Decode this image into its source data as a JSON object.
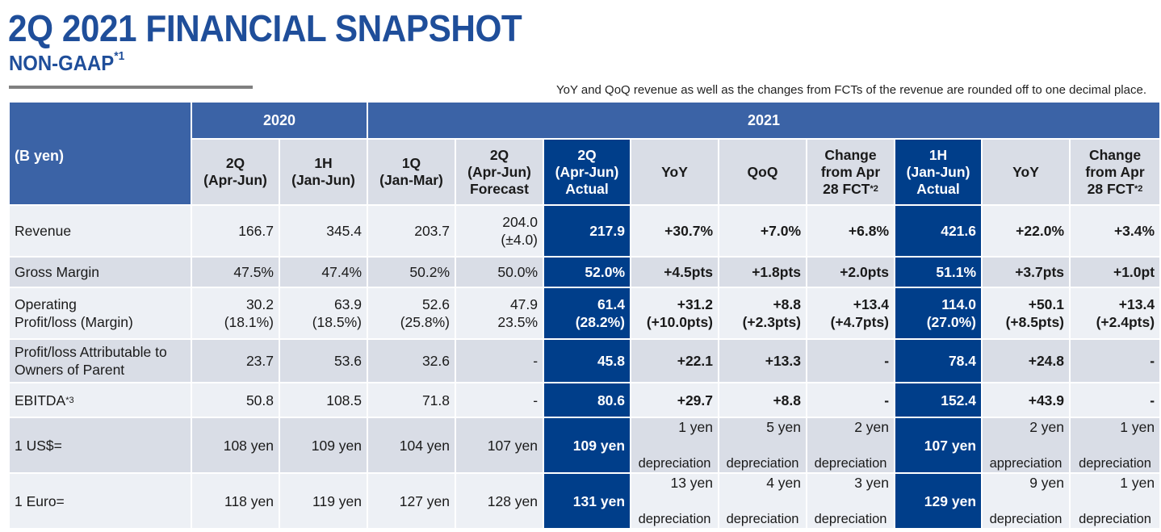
{
  "header": {
    "title": "2Q 2021 FINANCIAL SNAPSHOT",
    "subtitle": "NON-GAAP",
    "subtitle_note_mark": "*1",
    "note": "YoY and QoQ revenue as well as the changes from FCTs of the revenue are rounded off to one decimal place."
  },
  "table": {
    "unit_label": "(B yen)",
    "year_2020": "2020",
    "year_2021": "2021",
    "columns": [
      {
        "line1": "2Q",
        "line2": "(Apr-Jun)",
        "line3": ""
      },
      {
        "line1": "1H",
        "line2": "(Jan-Jun)",
        "line3": ""
      },
      {
        "line1": "1Q",
        "line2": "(Jan-Mar)",
        "line3": ""
      },
      {
        "line1": "2Q",
        "line2": "(Apr-Jun)",
        "line3": "Forecast"
      },
      {
        "line1": "2Q",
        "line2": "(Apr-Jun)",
        "line3": "Actual"
      },
      {
        "line1": "YoY",
        "line2": "",
        "line3": ""
      },
      {
        "line1": "QoQ",
        "line2": "",
        "line3": ""
      },
      {
        "line1": "Change",
        "line2": "from Apr",
        "line3": "28 FCT",
        "mark": "*2"
      },
      {
        "line1": "1H",
        "line2": "(Jan-Jun)",
        "line3": "Actual"
      },
      {
        "line1": "YoY",
        "line2": "",
        "line3": ""
      },
      {
        "line1": "Change",
        "line2": "from Apr",
        "line3": "28 FCT",
        "mark": "*2"
      }
    ],
    "rows": [
      {
        "label1": "Revenue",
        "label2": "",
        "cells": [
          [
            "166.7",
            ""
          ],
          [
            "345.4",
            ""
          ],
          [
            "203.7",
            ""
          ],
          [
            "204.0",
            "(±4.0)"
          ],
          [
            "217.9",
            ""
          ],
          [
            "+30.7%",
            ""
          ],
          [
            "+7.0%",
            ""
          ],
          [
            "+6.8%",
            ""
          ],
          [
            "421.6",
            ""
          ],
          [
            "+22.0%",
            ""
          ],
          [
            "+3.4%",
            ""
          ]
        ]
      },
      {
        "label1": "Gross Margin",
        "label2": "",
        "cells": [
          [
            "47.5%",
            ""
          ],
          [
            "47.4%",
            ""
          ],
          [
            "50.2%",
            ""
          ],
          [
            "50.0%",
            ""
          ],
          [
            "52.0%",
            ""
          ],
          [
            "+4.5pts",
            ""
          ],
          [
            "+1.8pts",
            ""
          ],
          [
            "+2.0pts",
            ""
          ],
          [
            "51.1%",
            ""
          ],
          [
            "+3.7pts",
            ""
          ],
          [
            "+1.0pt",
            ""
          ]
        ]
      },
      {
        "label1": "Operating",
        "label2": "Profit/loss (Margin)",
        "cells": [
          [
            "30.2",
            "(18.1%)"
          ],
          [
            "63.9",
            "(18.5%)"
          ],
          [
            "52.6",
            "(25.8%)"
          ],
          [
            "47.9",
            "23.5%"
          ],
          [
            "61.4",
            "(28.2%)"
          ],
          [
            "+31.2",
            "(+10.0pts)"
          ],
          [
            "+8.8",
            "(+2.3pts)"
          ],
          [
            "+13.4",
            "(+4.7pts)"
          ],
          [
            "114.0",
            "(27.0%)"
          ],
          [
            "+50.1",
            "(+8.5pts)"
          ],
          [
            "+13.4",
            "(+2.4pts)"
          ]
        ]
      },
      {
        "label1": "Profit/loss Attributable to",
        "label2": "Owners of Parent",
        "cells": [
          [
            "23.7",
            ""
          ],
          [
            "53.6",
            ""
          ],
          [
            "32.6",
            ""
          ],
          [
            "-",
            ""
          ],
          [
            "45.8",
            ""
          ],
          [
            "+22.1",
            ""
          ],
          [
            "+13.3",
            ""
          ],
          [
            "-",
            ""
          ],
          [
            "78.4",
            ""
          ],
          [
            "+24.8",
            ""
          ],
          [
            "-",
            ""
          ]
        ]
      },
      {
        "label1": "EBITDA",
        "label_mark": "*3",
        "label2": "",
        "cells": [
          [
            "50.8",
            ""
          ],
          [
            "108.5",
            ""
          ],
          [
            "71.8",
            ""
          ],
          [
            "-",
            ""
          ],
          [
            "80.6",
            ""
          ],
          [
            "+29.7",
            ""
          ],
          [
            "+8.8",
            ""
          ],
          [
            "-",
            ""
          ],
          [
            "152.4",
            ""
          ],
          [
            "+43.9",
            ""
          ],
          [
            "-",
            ""
          ]
        ]
      },
      {
        "label1": "1 US$=",
        "label2": "",
        "cells": [
          [
            "108 yen",
            ""
          ],
          [
            "109 yen",
            ""
          ],
          [
            "104 yen",
            ""
          ],
          [
            "107 yen",
            ""
          ],
          [
            "109 yen",
            ""
          ],
          [
            "1 yen",
            "depreciation"
          ],
          [
            "5 yen",
            "depreciation"
          ],
          [
            "2 yen",
            "depreciation"
          ],
          [
            "107 yen",
            ""
          ],
          [
            "2 yen",
            "appreciation"
          ],
          [
            "1 yen",
            "depreciation"
          ]
        ]
      },
      {
        "label1": "1 Euro=",
        "label2": "",
        "cells": [
          [
            "118 yen",
            ""
          ],
          [
            "119 yen",
            ""
          ],
          [
            "127 yen",
            ""
          ],
          [
            "128 yen",
            ""
          ],
          [
            "131 yen",
            ""
          ],
          [
            "13 yen",
            "depreciation"
          ],
          [
            "4 yen",
            "depreciation"
          ],
          [
            "3 yen",
            "depreciation"
          ],
          [
            "129 yen",
            ""
          ],
          [
            "9 yen",
            "depreciation"
          ],
          [
            "1 yen",
            "depreciation"
          ]
        ]
      }
    ]
  }
}
